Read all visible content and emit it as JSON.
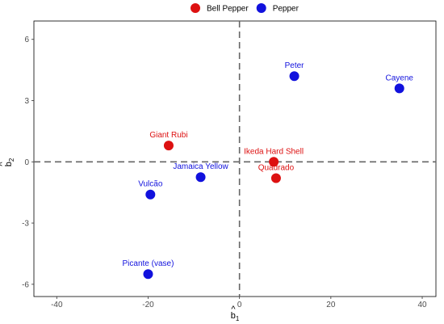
{
  "chart_data": {
    "type": "scatter",
    "xlabel": {
      "base": "b",
      "hat": "^",
      "sub": "1"
    },
    "ylabel": {
      "base": "b",
      "hat": "^",
      "sub": "2"
    },
    "xlim": [
      -45,
      43
    ],
    "ylim": [
      -6.6,
      6.9
    ],
    "xticks": [
      -40,
      -20,
      0,
      20,
      40
    ],
    "yticks": [
      -6,
      -3,
      0,
      3,
      6
    ],
    "reference_lines": {
      "x": 0,
      "y": 0,
      "style": "dashed"
    },
    "legend": {
      "position": "top",
      "entries": [
        {
          "name": "Bell Pepper",
          "color": "#dd1111"
        },
        {
          "name": "Pepper",
          "color": "#1111dd"
        }
      ]
    },
    "series": [
      {
        "name": "Bell Pepper",
        "color": "#dd1111",
        "points": [
          {
            "label": "Giant Rubi",
            "x": -15.5,
            "y": 0.8
          },
          {
            "label": "Ikeda Hard Shell",
            "x": 7.5,
            "y": 0.0
          },
          {
            "label": "Quadrado",
            "x": 8.0,
            "y": -0.8
          }
        ]
      },
      {
        "name": "Pepper",
        "color": "#1111dd",
        "points": [
          {
            "label": "Peter",
            "x": 12.0,
            "y": 4.2
          },
          {
            "label": "Cayene",
            "x": 35.0,
            "y": 3.6
          },
          {
            "label": "Jamaica Yellow",
            "x": -8.5,
            "y": -0.75
          },
          {
            "label": "Vulcão",
            "x": -19.5,
            "y": -1.6
          },
          {
            "label": "Picante (vase)",
            "x": -20.0,
            "y": -5.5
          }
        ]
      }
    ]
  }
}
